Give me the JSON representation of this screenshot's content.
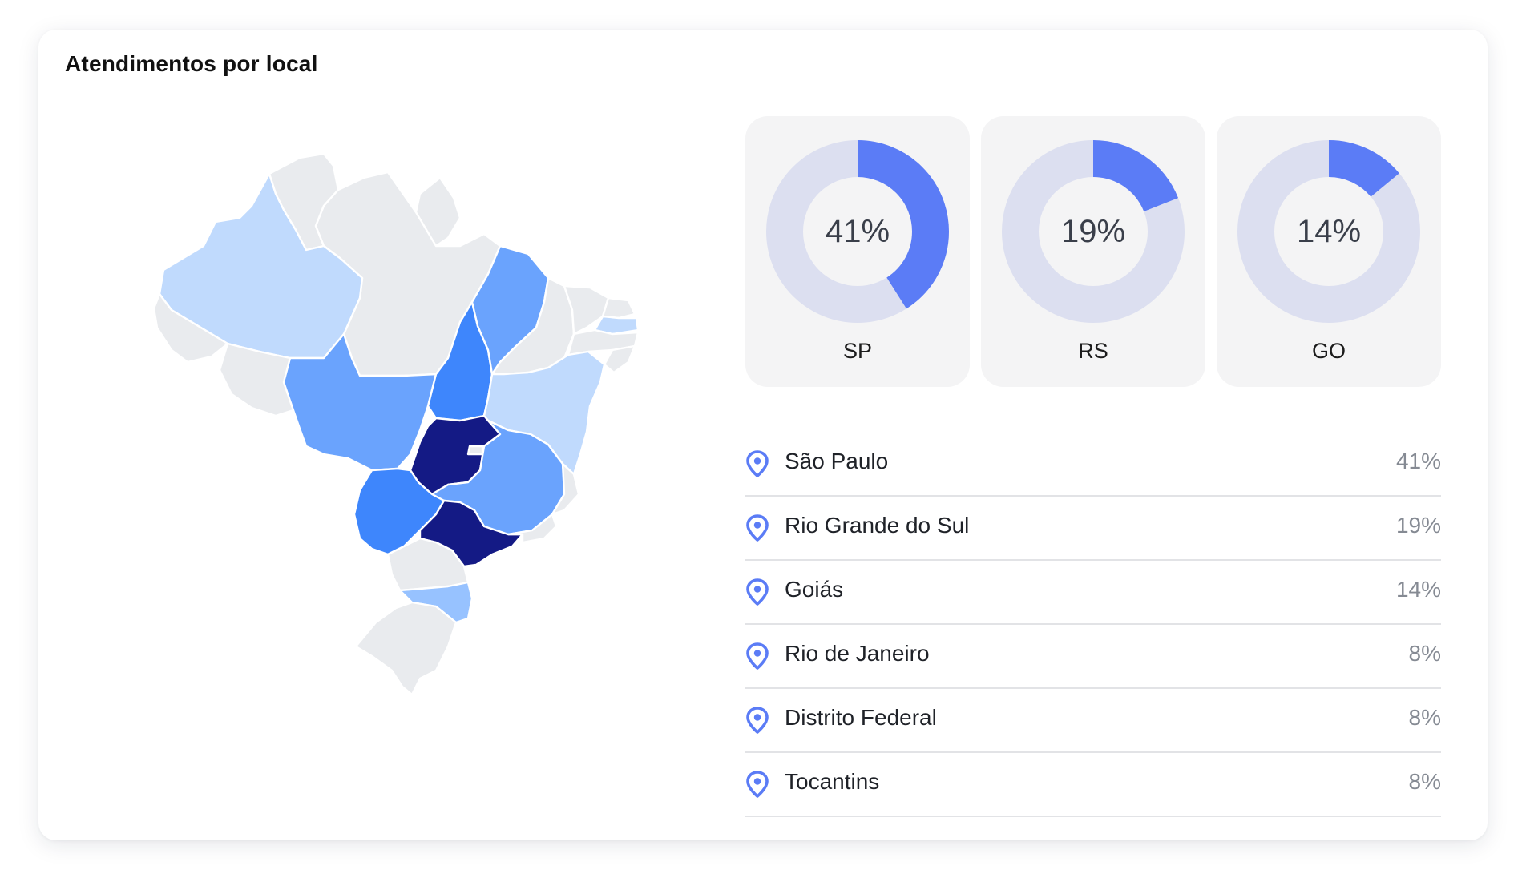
{
  "card": {
    "title": "Atendimentos por local"
  },
  "colors": {
    "accent": "#5b7cf6",
    "donut_track": "#dcdff0",
    "map_none": "#e9ebee",
    "map_low": "#c0dafd",
    "map_lowmid": "#97c2ff",
    "map_mid": "#6aa3fd",
    "map_high": "#3e86fc",
    "map_top": "#141a85",
    "pin": "#5b7cf6"
  },
  "donuts": [
    {
      "state": "SP",
      "percent_label": "41%",
      "fraction": 0.41
    },
    {
      "state": "RS",
      "percent_label": "19%",
      "fraction": 0.19
    },
    {
      "state": "GO",
      "percent_label": "14%",
      "fraction": 0.14
    }
  ],
  "locations": [
    {
      "name": "São Paulo",
      "value": "41%",
      "icon": "map-pin-icon"
    },
    {
      "name": "Rio Grande do Sul",
      "value": "19%",
      "icon": "map-pin-icon"
    },
    {
      "name": "Goiás",
      "value": "14%",
      "icon": "map-pin-icon"
    },
    {
      "name": "Rio de Janeiro",
      "value": "8%",
      "icon": "map-pin-icon"
    },
    {
      "name": "Distrito Federal",
      "value": "8%",
      "icon": "map-pin-icon"
    },
    {
      "name": "Tocantins",
      "value": "8%",
      "icon": "map-pin-icon"
    }
  ]
}
